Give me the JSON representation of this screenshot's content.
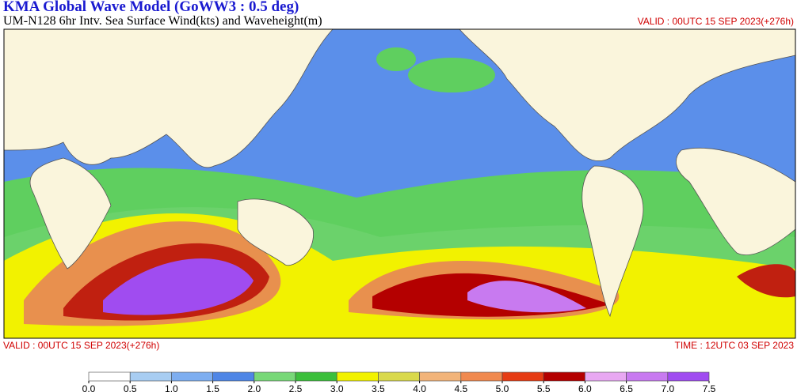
{
  "header": {
    "title": "KMA  Global Wave Model (GoWW3 : 0.5 deg)",
    "subtitle": "UM-N128  6hr Intv. Sea Surface Wind(kts) and Waveheight(m)",
    "valid": "VALID : 00UTC 15 SEP 2023(+276h)"
  },
  "footer": {
    "valid": "VALID : 00UTC 15 SEP 2023(+276h)",
    "time": "TIME : 12UTC 03 SEP 2023"
  },
  "legend": {
    "colors": [
      "#ffffff",
      "#a8cdf2",
      "#7eaef0",
      "#4f86e6",
      "#78d878",
      "#3cbf3c",
      "#f2f200",
      "#d9d94c",
      "#f2b47a",
      "#f08a50",
      "#e63c14",
      "#b40000",
      "#e8a8f2",
      "#c87af0",
      "#a04cf0"
    ],
    "ticks": [
      {
        "value": 0,
        "label": "0.0"
      },
      0.5,
      {
        "value": 1,
        "label": "1.0"
      },
      1.5,
      {
        "value": 2,
        "label": "2.0"
      },
      2.5,
      {
        "value": 3,
        "label": "3.0"
      },
      3.5,
      {
        "value": 4,
        "label": "4.0"
      },
      4.5,
      {
        "value": 5,
        "label": "5.0"
      },
      5.5,
      {
        "value": 6,
        "label": "6.0"
      },
      6.5,
      {
        "value": 7,
        "label": "7.0"
      },
      7.5
    ]
  }
}
